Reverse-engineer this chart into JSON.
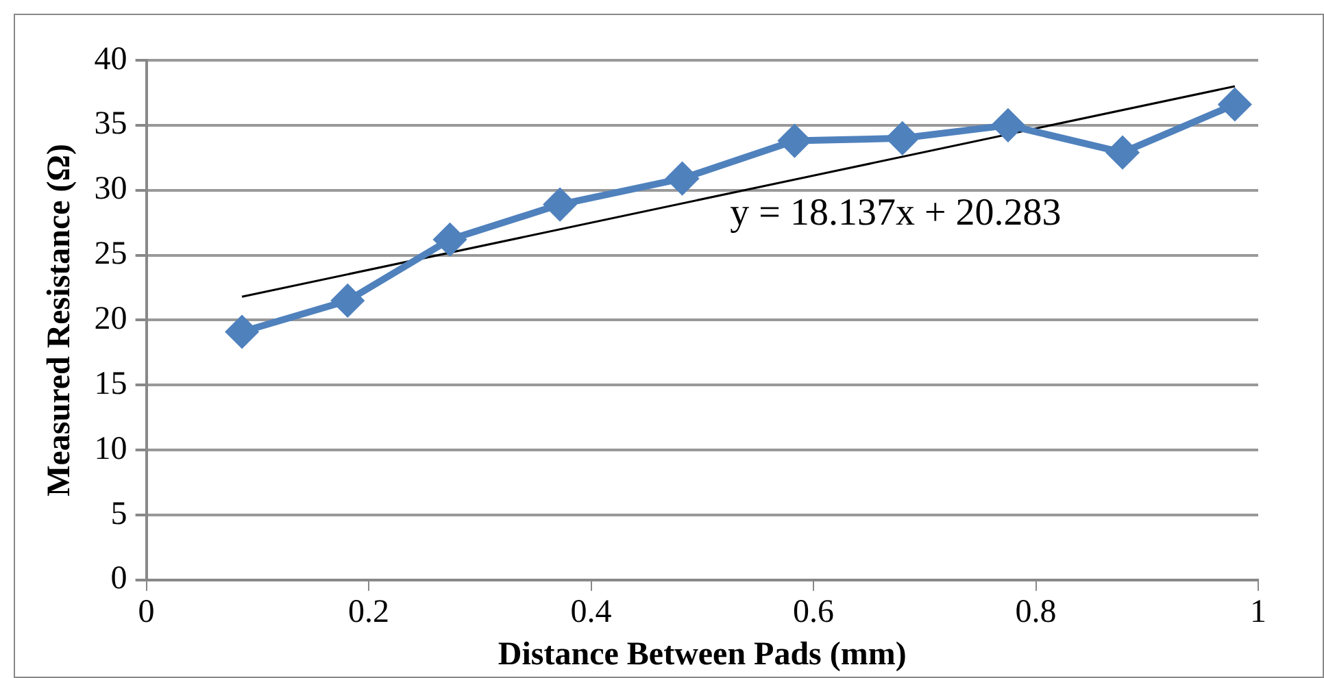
{
  "chart_data": {
    "type": "line",
    "xlabel": "Distance Between Pads (mm)",
    "ylabel": "Measured Resistance (Ω)",
    "xlim": [
      0,
      1
    ],
    "xticks": [
      0,
      0.2,
      0.4,
      0.6,
      0.8,
      1
    ],
    "ylim": [
      0,
      40
    ],
    "yticks": [
      0,
      5,
      10,
      15,
      20,
      25,
      30,
      35,
      40
    ],
    "grid": "y",
    "legend": false,
    "marker": "diamond",
    "line_style": "solid",
    "series": [
      {
        "color": "#4f81bd",
        "x": [
          0.086,
          0.181,
          0.273,
          0.372,
          0.482,
          0.583,
          0.68,
          0.775,
          0.878,
          0.979
        ],
        "values": [
          19.1,
          21.5,
          26.2,
          28.9,
          30.9,
          33.8,
          34.0,
          35.0,
          32.9,
          36.6
        ]
      },
      {
        "type": "line",
        "marker": "none",
        "color": "#000000",
        "x": [
          0.086,
          0.979
        ],
        "values": [
          21.8,
          38.0
        ]
      }
    ],
    "annotations": [
      "y = 18.137x + 20.283"
    ]
  }
}
